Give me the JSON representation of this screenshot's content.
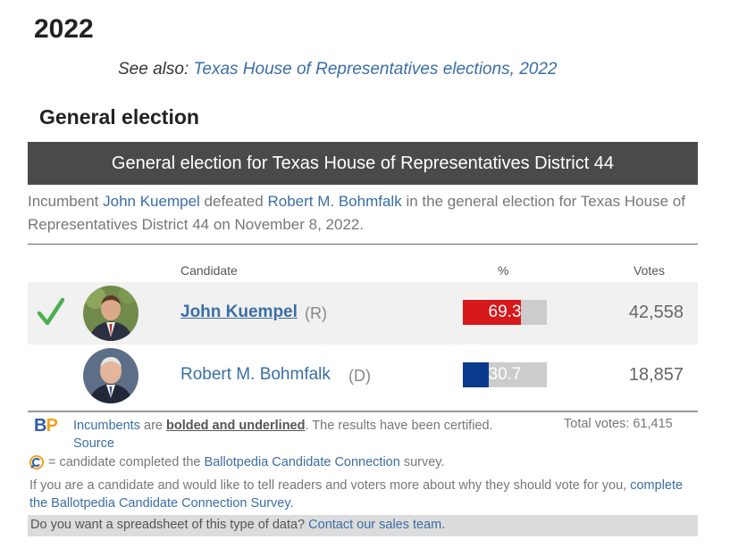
{
  "page": {
    "year_heading": "2022",
    "see_also_prefix": "See also:",
    "see_also_link": "Texas House of Representatives elections, 2022",
    "section_heading": "General election"
  },
  "election": {
    "banner_title": "General election for Texas House of Representatives District 44",
    "summary": {
      "prefix": "Incumbent",
      "winner": "John Kuempel",
      "verb": "defeated",
      "loser": "Robert M. Bohmfalk",
      "suffix": "in the general election for Texas House of Representatives District 44 on November 8, 2022."
    },
    "columns": {
      "candidate": "Candidate",
      "percent": "%",
      "votes": "Votes"
    },
    "candidates": [
      {
        "name": "John Kuempel",
        "party": "(R)",
        "percent": 69.3,
        "percent_label": "69.3",
        "votes": "42,558",
        "winner": true,
        "bar_color": "#d7191c"
      },
      {
        "name": "Robert M. Bohmfalk",
        "party": "(D)",
        "percent": 30.7,
        "percent_label": "30.7",
        "votes": "18,857",
        "winner": false,
        "bar_color": "#0a3a8c"
      }
    ],
    "icons": {
      "winner_mark": "check-icon",
      "connection_mark": "candidate-connection-icon"
    }
  },
  "footer": {
    "logo_b": "B",
    "logo_p": "P",
    "incumbents_link": "Incumbents",
    "are_text": "are",
    "bolded_text": "bolded and underlined",
    "certified_text": ". The results have been certified.",
    "source_link": "Source",
    "total_votes": "Total votes: 61,415",
    "cc_prefix": "= candidate completed the",
    "cc_link": "Ballotpedia Candidate Connection",
    "cc_suffix": "survey.",
    "candidate_msg": "If you are a candidate and would like to tell readers and voters more about why they should vote for you,",
    "candidate_msg_link": "complete the Ballotpedia Candidate Connection Survey.",
    "sales_question": "Do you want a spreadsheet of this type of data?",
    "sales_link": "Contact our sales team."
  },
  "colors": {
    "banner_bg": "#4a4a4a",
    "link": "#3a6ea5",
    "winner_check": "#4caf50",
    "republican": "#d7191c",
    "democrat": "#0a3a8c",
    "bar_track": "#cccccc"
  }
}
